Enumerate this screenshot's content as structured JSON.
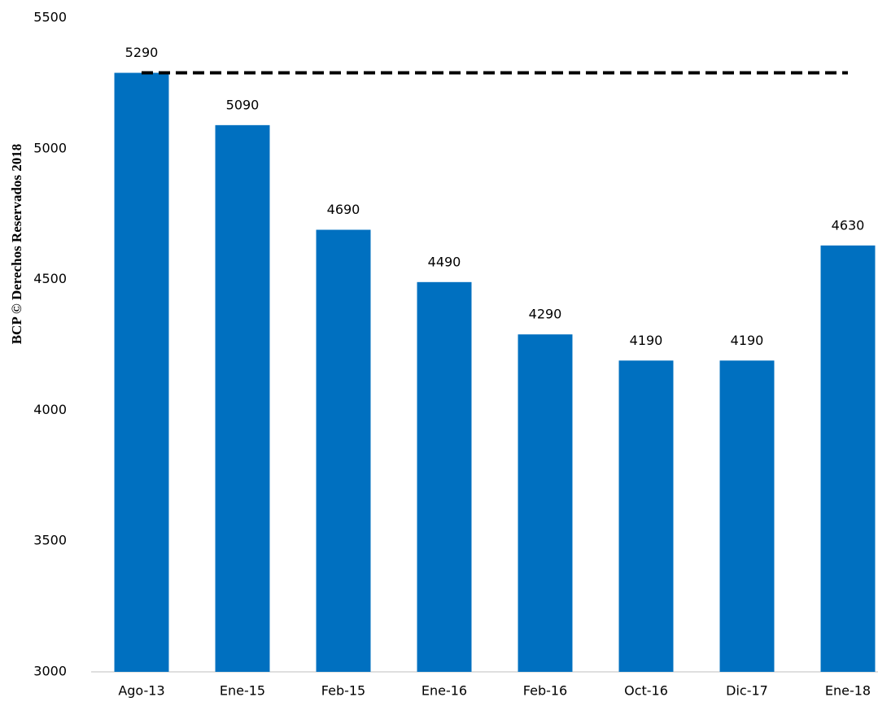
{
  "chart_data": {
    "type": "bar",
    "y_label": "BCP © Derechos Reservados 2018",
    "categories": [
      "Ago-13",
      "Ene-15",
      "Feb-15",
      "Ene-16",
      "Feb-16",
      "Oct-16",
      "Dic-17",
      "Ene-18"
    ],
    "values": [
      5290,
      5090,
      4690,
      4490,
      4290,
      4190,
      4190,
      4630
    ],
    "color": "#0070c0",
    "reference_line": 5290,
    "ylim": [
      3000,
      5500
    ],
    "yticks": [
      3000,
      3500,
      4000,
      4500,
      5000,
      5500
    ],
    "grid": false
  }
}
